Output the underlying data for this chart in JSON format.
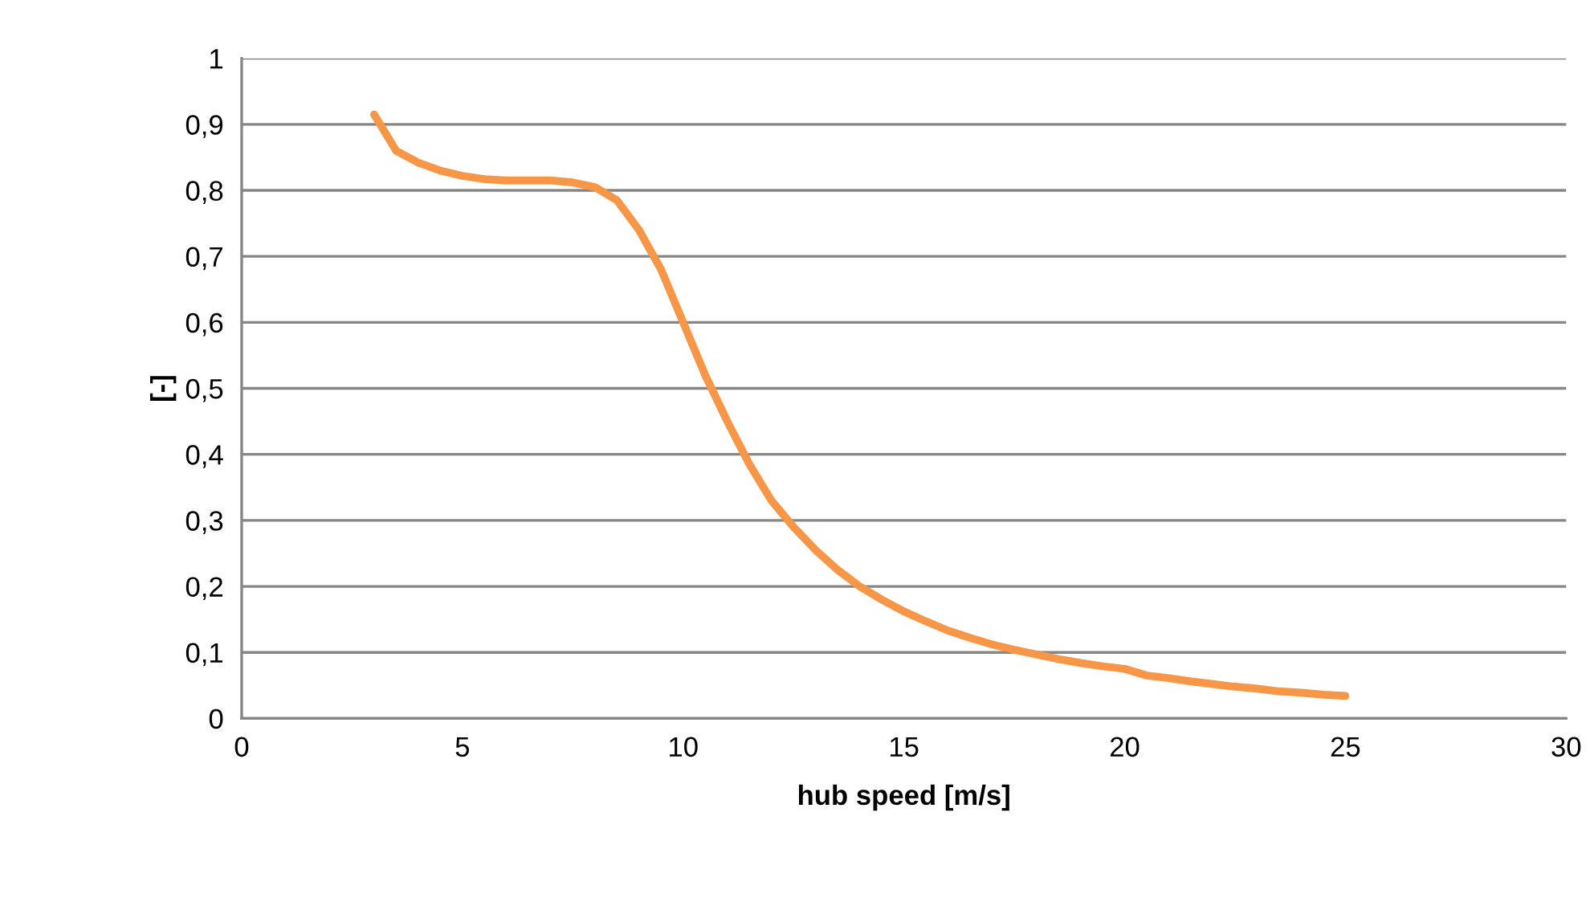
{
  "chart_data": {
    "type": "line",
    "xlabel": "hub speed [m/s]",
    "ylabel": "[-]",
    "x": [
      3,
      3.5,
      4,
      4.5,
      5,
      5.5,
      6,
      6.5,
      7,
      7.5,
      8,
      8.5,
      9,
      9.5,
      10,
      10.5,
      11,
      11.5,
      12,
      12.5,
      13,
      13.5,
      14,
      14.5,
      15,
      15.5,
      16,
      16.5,
      17,
      17.5,
      18,
      18.5,
      19,
      19.5,
      20,
      20.5,
      21,
      21.5,
      22,
      22.5,
      23,
      23.5,
      24,
      24.5,
      25
    ],
    "series": [
      {
        "color": "#f79646",
        "values": [
          0.915,
          0.86,
          0.842,
          0.83,
          0.822,
          0.817,
          0.815,
          0.815,
          0.815,
          0.812,
          0.805,
          0.785,
          0.74,
          0.68,
          0.6,
          0.52,
          0.45,
          0.385,
          0.33,
          0.29,
          0.255,
          0.225,
          0.2,
          0.18,
          0.162,
          0.147,
          0.133,
          0.122,
          0.112,
          0.104,
          0.097,
          0.09,
          0.084,
          0.079,
          0.075,
          0.065,
          0.061,
          0.056,
          0.052,
          0.048,
          0.045,
          0.041,
          0.039,
          0.036,
          0.034
        ]
      }
    ],
    "xlim": [
      0,
      30
    ],
    "xticks": [
      0,
      5,
      10,
      15,
      20,
      25,
      30
    ],
    "ylim": [
      0,
      1
    ],
    "yticks": [
      0,
      {
        "value": 0.1,
        "label": "0,1"
      },
      {
        "value": 0.2,
        "label": "0,2"
      },
      {
        "value": 0.3,
        "label": "0,3"
      },
      {
        "value": 0.4,
        "label": "0,4"
      },
      {
        "value": 0.5,
        "label": "0,5"
      },
      {
        "value": 0.6,
        "label": "0,6"
      },
      {
        "value": 0.7,
        "label": "0,7"
      },
      {
        "value": 0.8,
        "label": "0,8"
      },
      {
        "value": 0.9,
        "label": "0,9"
      },
      1
    ],
    "grid": "y",
    "marker": "none",
    "line_style": "solid"
  }
}
